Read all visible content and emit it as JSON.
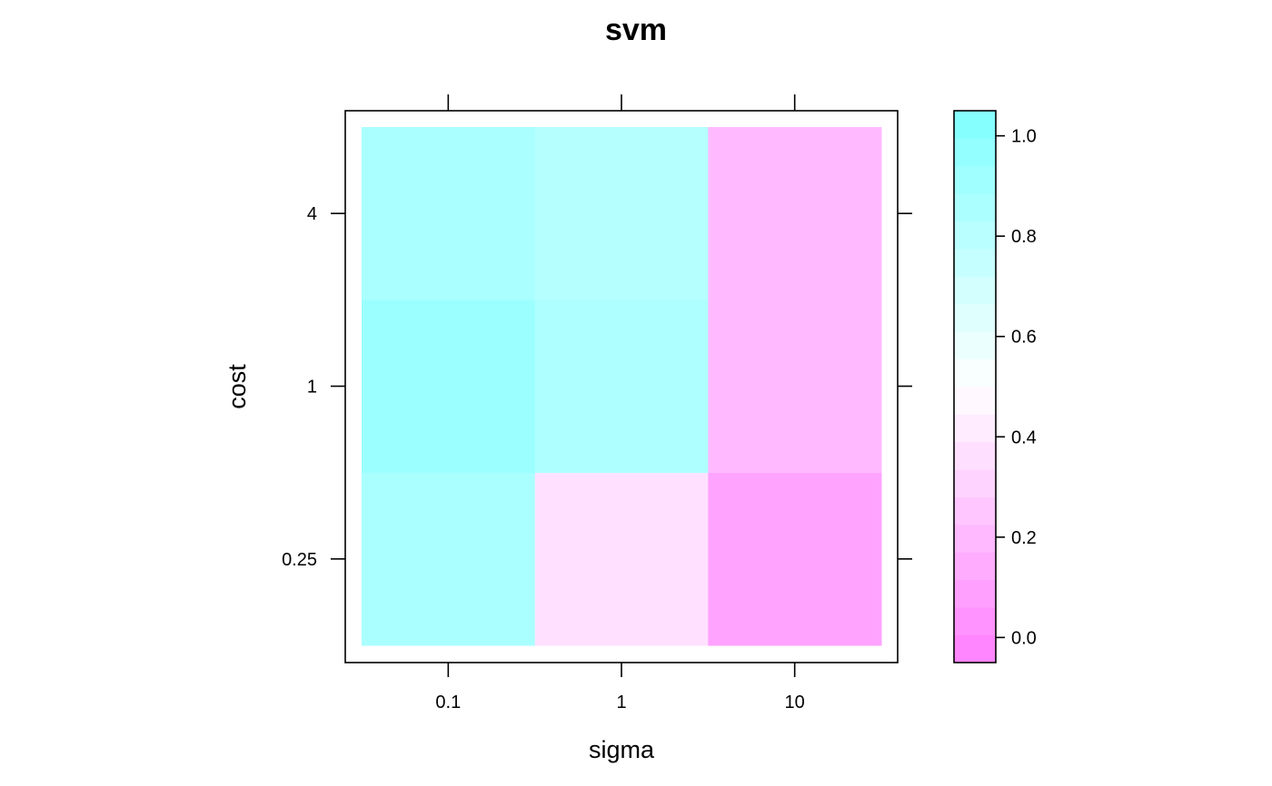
{
  "chart_data": {
    "type": "heatmap",
    "title": "svm",
    "xlabel": "sigma",
    "ylabel": "cost",
    "x_categories": [
      "0.1",
      "1",
      "10"
    ],
    "y_categories": [
      "0.25",
      "1",
      "4"
    ],
    "values": [
      [
        0.87,
        0.37,
        0.1
      ],
      [
        0.93,
        0.85,
        0.2
      ],
      [
        0.87,
        0.82,
        0.2
      ]
    ],
    "colorkey": {
      "range": [
        -0.05,
        1.05
      ],
      "ticks": [
        "0.0",
        "0.2",
        "0.4",
        "0.6",
        "0.8",
        "1.0"
      ],
      "low_color": "#ff80ff",
      "mid_color": "#ffffff",
      "high_color": "#80ffff"
    }
  }
}
